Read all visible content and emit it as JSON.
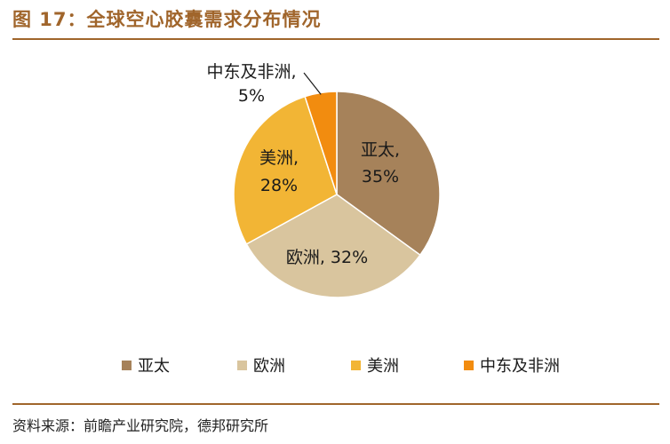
{
  "header": {
    "title": "图 17：全球空心胶囊需求分布情况"
  },
  "footer": {
    "source": "资料来源：前瞻产业研究院，德邦研究所"
  },
  "chart_data": {
    "type": "pie",
    "title": "图 17：全球空心胶囊需求分布情况",
    "categories": [
      "亚太",
      "欧洲",
      "美洲",
      "中东及非洲"
    ],
    "values": [
      35,
      32,
      28,
      5
    ],
    "unit": "%",
    "data_labels": [
      {
        "name": "亚太,",
        "value": "35%"
      },
      {
        "name": "欧洲, 32%",
        "value": ""
      },
      {
        "name": "美洲,",
        "value": "28%"
      },
      {
        "name": "中东及非洲,",
        "value": "5%"
      }
    ],
    "colors": [
      "#a6825a",
      "#d9c59e",
      "#f2b535",
      "#f28c0f"
    ],
    "legend": {
      "position": "bottom",
      "entries": [
        "亚太",
        "欧洲",
        "美洲",
        "中东及非洲"
      ]
    },
    "start_angle": "12 o'clock",
    "direction": "clockwise"
  }
}
